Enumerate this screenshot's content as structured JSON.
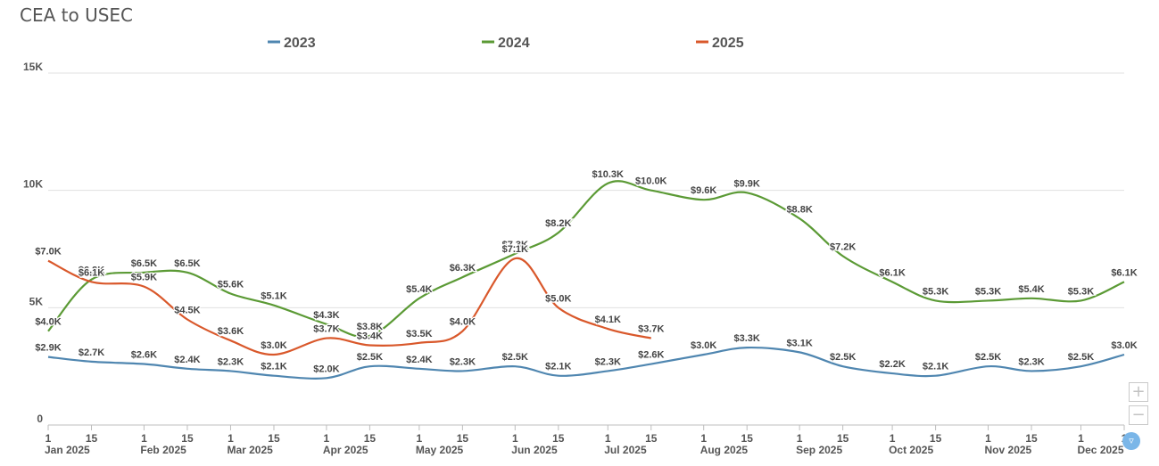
{
  "chart_data": {
    "type": "line",
    "title": "CEA to USEC",
    "ylim": [
      0,
      15000
    ],
    "yticks": [
      {
        "v": 0,
        "label": "0"
      },
      {
        "v": 5000,
        "label": "5K"
      },
      {
        "v": 10000,
        "label": "10K"
      },
      {
        "v": 15000,
        "label": "15K"
      }
    ],
    "x_ticks": [
      {
        "day": 1,
        "label": "1"
      },
      {
        "day": 15,
        "label": "15"
      },
      {
        "day": 32,
        "label": "1"
      },
      {
        "day": 46,
        "label": "15"
      },
      {
        "day": 60,
        "label": "1"
      },
      {
        "day": 74,
        "label": "15"
      },
      {
        "day": 91,
        "label": "1"
      },
      {
        "day": 105,
        "label": "15"
      },
      {
        "day": 121,
        "label": "1"
      },
      {
        "day": 135,
        "label": "15"
      },
      {
        "day": 152,
        "label": "1"
      },
      {
        "day": 166,
        "label": "15"
      },
      {
        "day": 182,
        "label": "1"
      },
      {
        "day": 196,
        "label": "15"
      },
      {
        "day": 213,
        "label": "1"
      },
      {
        "day": 227,
        "label": "15"
      },
      {
        "day": 244,
        "label": "1"
      },
      {
        "day": 258,
        "label": "15"
      },
      {
        "day": 274,
        "label": "1"
      },
      {
        "day": 288,
        "label": "15"
      },
      {
        "day": 305,
        "label": "1"
      },
      {
        "day": 319,
        "label": "15"
      },
      {
        "day": 335,
        "label": "1"
      },
      {
        "day": 349,
        "label": "1"
      }
    ],
    "months": [
      {
        "day": 1,
        "label": "Jan 2025"
      },
      {
        "day": 32,
        "label": "Feb 2025"
      },
      {
        "day": 60,
        "label": "Mar 2025"
      },
      {
        "day": 91,
        "label": "Apr 2025"
      },
      {
        "day": 121,
        "label": "May 2025"
      },
      {
        "day": 152,
        "label": "Jun 2025"
      },
      {
        "day": 182,
        "label": "Jul 2025"
      },
      {
        "day": 213,
        "label": "Aug 2025"
      },
      {
        "day": 244,
        "label": "Sep 2025"
      },
      {
        "day": 274,
        "label": "Oct 2025"
      },
      {
        "day": 305,
        "label": "Nov 2025"
      },
      {
        "day": 335,
        "label": "Dec 2025"
      }
    ],
    "x_domain": [
      1,
      349
    ],
    "series": [
      {
        "name": "2023",
        "color": "#4f86b0",
        "points": [
          {
            "day": 1,
            "value": 2900,
            "label": "$2.9K"
          },
          {
            "day": 15,
            "value": 2700,
            "label": "$2.7K"
          },
          {
            "day": 32,
            "value": 2600,
            "label": "$2.6K"
          },
          {
            "day": 46,
            "value": 2400,
            "label": "$2.4K"
          },
          {
            "day": 60,
            "value": 2300,
            "label": "$2.3K"
          },
          {
            "day": 74,
            "value": 2100,
            "label": "$2.1K"
          },
          {
            "day": 91,
            "value": 2000,
            "label": "$2.0K"
          },
          {
            "day": 105,
            "value": 2500,
            "label": "$2.5K"
          },
          {
            "day": 121,
            "value": 2400,
            "label": "$2.4K"
          },
          {
            "day": 135,
            "value": 2300,
            "label": "$2.3K"
          },
          {
            "day": 152,
            "value": 2500,
            "label": "$2.5K"
          },
          {
            "day": 166,
            "value": 2100,
            "label": "$2.1K"
          },
          {
            "day": 182,
            "value": 2300,
            "label": "$2.3K"
          },
          {
            "day": 196,
            "value": 2600,
            "label": "$2.6K"
          },
          {
            "day": 213,
            "value": 3000,
            "label": "$3.0K"
          },
          {
            "day": 227,
            "value": 3300,
            "label": "$3.3K"
          },
          {
            "day": 244,
            "value": 3100,
            "label": "$3.1K"
          },
          {
            "day": 258,
            "value": 2500,
            "label": "$2.5K"
          },
          {
            "day": 274,
            "value": 2200,
            "label": "$2.2K"
          },
          {
            "day": 288,
            "value": 2100,
            "label": "$2.1K"
          },
          {
            "day": 305,
            "value": 2500,
            "label": "$2.5K"
          },
          {
            "day": 319,
            "value": 2300,
            "label": "$2.3K"
          },
          {
            "day": 335,
            "value": 2500,
            "label": "$2.5K"
          },
          {
            "day": 349,
            "value": 3000,
            "label": "$3.0K"
          }
        ]
      },
      {
        "name": "2024",
        "color": "#5b9a35",
        "points": [
          {
            "day": 1,
            "value": 4000,
            "label": "$4.0K"
          },
          {
            "day": 15,
            "value": 6200,
            "label": "$6.2K"
          },
          {
            "day": 32,
            "value": 6500,
            "label": "$6.5K"
          },
          {
            "day": 46,
            "value": 6500,
            "label": "$6.5K"
          },
          {
            "day": 60,
            "value": 5600,
            "label": "$5.6K"
          },
          {
            "day": 74,
            "value": 5100,
            "label": "$5.1K"
          },
          {
            "day": 91,
            "value": 4300,
            "label": "$4.3K"
          },
          {
            "day": 105,
            "value": 3800,
            "label": "$3.8K"
          },
          {
            "day": 121,
            "value": 5400,
            "label": "$5.4K"
          },
          {
            "day": 135,
            "value": 6300,
            "label": "$6.3K"
          },
          {
            "day": 152,
            "value": 7300,
            "label": "$7.3K"
          },
          {
            "day": 166,
            "value": 8200,
            "label": "$8.2K"
          },
          {
            "day": 182,
            "value": 10300,
            "label": "$10.3K"
          },
          {
            "day": 196,
            "value": 10000,
            "label": "$10.0K"
          },
          {
            "day": 213,
            "value": 9600,
            "label": "$9.6K"
          },
          {
            "day": 227,
            "value": 9900,
            "label": "$9.9K"
          },
          {
            "day": 244,
            "value": 8800,
            "label": "$8.8K"
          },
          {
            "day": 258,
            "value": 7200,
            "label": "$7.2K"
          },
          {
            "day": 274,
            "value": 6100,
            "label": "$6.1K"
          },
          {
            "day": 288,
            "value": 5300,
            "label": "$5.3K"
          },
          {
            "day": 305,
            "value": 5300,
            "label": "$5.3K"
          },
          {
            "day": 319,
            "value": 5400,
            "label": "$5.4K"
          },
          {
            "day": 335,
            "value": 5300,
            "label": "$5.3K"
          },
          {
            "day": 349,
            "value": 6100,
            "label": "$6.1K"
          }
        ]
      },
      {
        "name": "2025",
        "color": "#d9582b",
        "points": [
          {
            "day": 1,
            "value": 7000,
            "label": "$7.0K"
          },
          {
            "day": 15,
            "value": 6100,
            "label": "$6.1K"
          },
          {
            "day": 32,
            "value": 5900,
            "label": "$5.9K"
          },
          {
            "day": 46,
            "value": 4500,
            "label": "$4.5K"
          },
          {
            "day": 60,
            "value": 3600,
            "label": "$3.6K"
          },
          {
            "day": 74,
            "value": 3000,
            "label": "$3.0K"
          },
          {
            "day": 91,
            "value": 3700,
            "label": "$3.7K"
          },
          {
            "day": 105,
            "value": 3400,
            "label": "$3.4K"
          },
          {
            "day": 121,
            "value": 3500,
            "label": "$3.5K"
          },
          {
            "day": 135,
            "value": 4000,
            "label": "$4.0K"
          },
          {
            "day": 152,
            "value": 7100,
            "label": "$7.1K"
          },
          {
            "day": 166,
            "value": 5000,
            "label": "$5.0K"
          },
          {
            "day": 182,
            "value": 4100,
            "label": "$4.1K"
          },
          {
            "day": 196,
            "value": 3700,
            "label": "$3.7K"
          }
        ]
      }
    ],
    "legend_position": "top-center"
  },
  "controls": {
    "zoom_in": "+",
    "zoom_out": "−",
    "filter_icon": "filter-icon"
  }
}
